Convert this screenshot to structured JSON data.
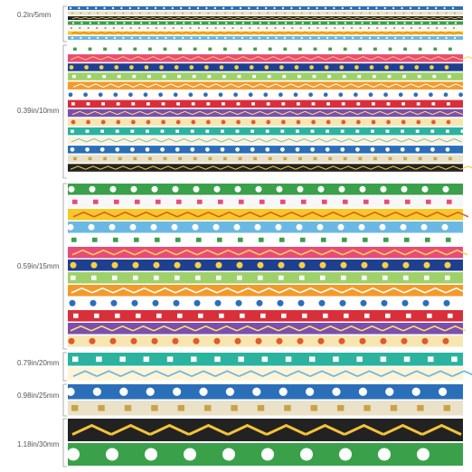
{
  "size_labels": [
    "0.2in/5mm",
    "0.39in/10mm",
    "0.59in/15mm",
    "0.79in/20mm",
    "0.98in/25mm",
    "1.18in/30mm"
  ]
}
